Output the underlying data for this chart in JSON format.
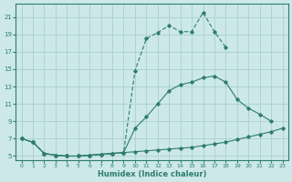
{
  "xlabel": "Humidex (Indice chaleur)",
  "x_all": [
    0,
    1,
    2,
    3,
    4,
    5,
    6,
    7,
    8,
    9,
    10,
    11,
    12,
    13,
    14,
    15,
    16,
    17,
    18,
    19,
    20,
    21,
    22,
    23
  ],
  "line1_y": [
    7,
    6.6,
    5.3,
    5.1,
    5.0,
    5.0,
    5.1,
    5.2,
    5.3,
    5.4,
    5.5,
    5.6,
    5.7,
    5.8,
    5.9,
    6.0,
    6.2,
    6.4,
    6.6,
    6.9,
    7.2,
    7.5,
    7.8,
    8.2
  ],
  "line2_x": [
    0,
    1,
    2,
    3,
    4,
    5,
    6,
    7,
    8,
    9,
    10,
    11,
    12,
    13,
    14,
    15,
    16,
    17,
    18,
    19,
    20,
    21,
    22
  ],
  "line2_y": [
    7,
    6.6,
    5.3,
    5.1,
    5.0,
    5.0,
    5.1,
    5.2,
    5.3,
    5.4,
    8.2,
    9.5,
    11.0,
    12.5,
    13.2,
    13.5,
    14.0,
    14.2,
    13.5,
    11.5,
    10.5,
    9.8,
    9.0
  ],
  "line3_x": [
    0,
    1,
    2,
    3,
    4,
    5,
    6,
    7,
    8,
    9,
    10,
    11,
    12,
    13,
    14,
    15,
    16,
    17,
    18
  ],
  "line3_y": [
    7,
    6.6,
    5.3,
    5.1,
    5.0,
    5.0,
    5.1,
    5.2,
    5.3,
    5.4,
    14.8,
    18.5,
    19.2,
    20.0,
    19.3,
    19.3,
    21.5,
    19.3,
    17.5
  ],
  "line_color": "#2e7d6e",
  "bg_color": "#cce8e8",
  "grid_color": "#aacfcf",
  "ylim": [
    4.5,
    22.5
  ],
  "xlim": [
    -0.5,
    23.5
  ],
  "yticks": [
    5,
    7,
    9,
    11,
    13,
    15,
    17,
    19,
    21
  ],
  "xticks": [
    0,
    1,
    2,
    3,
    4,
    5,
    6,
    7,
    8,
    9,
    10,
    11,
    12,
    13,
    14,
    15,
    16,
    17,
    18,
    19,
    20,
    21,
    22,
    23
  ]
}
